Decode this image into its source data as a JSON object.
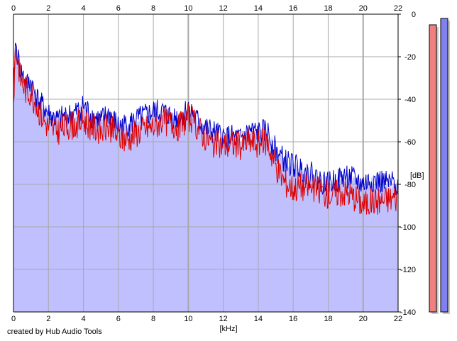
{
  "app": {
    "credit": "created by Hub Audio Tools"
  },
  "chart_data": {
    "type": "area",
    "xlabel": "[kHz]",
    "ylabel": "[dB]",
    "xlim": [
      0,
      22
    ],
    "ylim": [
      -140,
      0
    ],
    "x_ticks": [
      0,
      2,
      4,
      6,
      8,
      10,
      12,
      14,
      16,
      18,
      20,
      22
    ],
    "y_ticks": [
      0,
      -20,
      -40,
      -60,
      -80,
      -100,
      -120,
      -140
    ],
    "grid": true,
    "x": [
      0,
      0.1,
      0.25,
      0.4,
      0.6,
      0.8,
      1,
      1.25,
      1.5,
      1.75,
      2,
      2.5,
      3,
      3.5,
      4,
      4.5,
      5,
      5.5,
      6,
      6.5,
      7,
      7.5,
      8,
      8.5,
      9,
      9.5,
      10,
      10.5,
      11,
      11.5,
      12,
      12.5,
      13,
      13.5,
      14,
      14.5,
      15,
      15.5,
      16,
      16.5,
      17,
      17.5,
      18,
      18.5,
      19,
      19.5,
      20,
      20.5,
      21,
      21.5,
      22
    ],
    "series": [
      {
        "color": "#0000cc",
        "values": [
          -40,
          -14,
          -20,
          -27,
          -30,
          -33,
          -32,
          -38,
          -42,
          -44,
          -47,
          -50,
          -48,
          -47,
          -43,
          -48,
          -50,
          -47,
          -53,
          -52,
          -50,
          -48,
          -46,
          -46,
          -48,
          -49,
          -44,
          -50,
          -54,
          -56,
          -58,
          -58,
          -59,
          -55,
          -56,
          -55,
          -64,
          -69,
          -71,
          -73,
          -75,
          -78,
          -80,
          -78,
          -76,
          -78,
          -80,
          -78,
          -79,
          -80,
          -79
        ]
      },
      {
        "color": "#dd0000",
        "values": [
          -42,
          -16,
          -22,
          -30,
          -34,
          -37,
          -36,
          -42,
          -46,
          -50,
          -53,
          -55,
          -53,
          -52,
          -50,
          -53,
          -55,
          -53,
          -58,
          -59,
          -56,
          -54,
          -53,
          -50,
          -51,
          -53,
          -48,
          -53,
          -58,
          -61,
          -62,
          -61,
          -62,
          -60,
          -61,
          -60,
          -71,
          -79,
          -82,
          -81,
          -82,
          -83,
          -85,
          -84,
          -84,
          -86,
          -90,
          -88,
          -88,
          -87,
          -86
        ]
      },
      {
        "name": "",
        "values": [
          -40,
          -14,
          -20,
          -27,
          -30,
          -33,
          -32,
          -38,
          -42,
          -44,
          -47,
          -50,
          -48,
          -47,
          -43,
          -48,
          -50,
          -47,
          -53,
          -52,
          -50,
          -48,
          -46,
          -46,
          -48,
          -49,
          -44,
          -50,
          -54,
          -56,
          -58,
          -58,
          -59,
          -55,
          -56,
          -55,
          -64,
          -69,
          -71,
          -73,
          -75,
          -78,
          -80,
          -78,
          -76,
          -78,
          -80,
          -78,
          -79,
          -80,
          -79
        ],
        "fill": "#c0c0ff"
      }
    ]
  },
  "meters": [
    {
      "color": "#f08080",
      "level_db": -5
    },
    {
      "color": "#8080f0",
      "level_db": -2
    }
  ],
  "colors": {
    "grid": "#a8a8a8",
    "fill": "#c0c0ff",
    "meter_shadow": "#c8c8c8"
  }
}
